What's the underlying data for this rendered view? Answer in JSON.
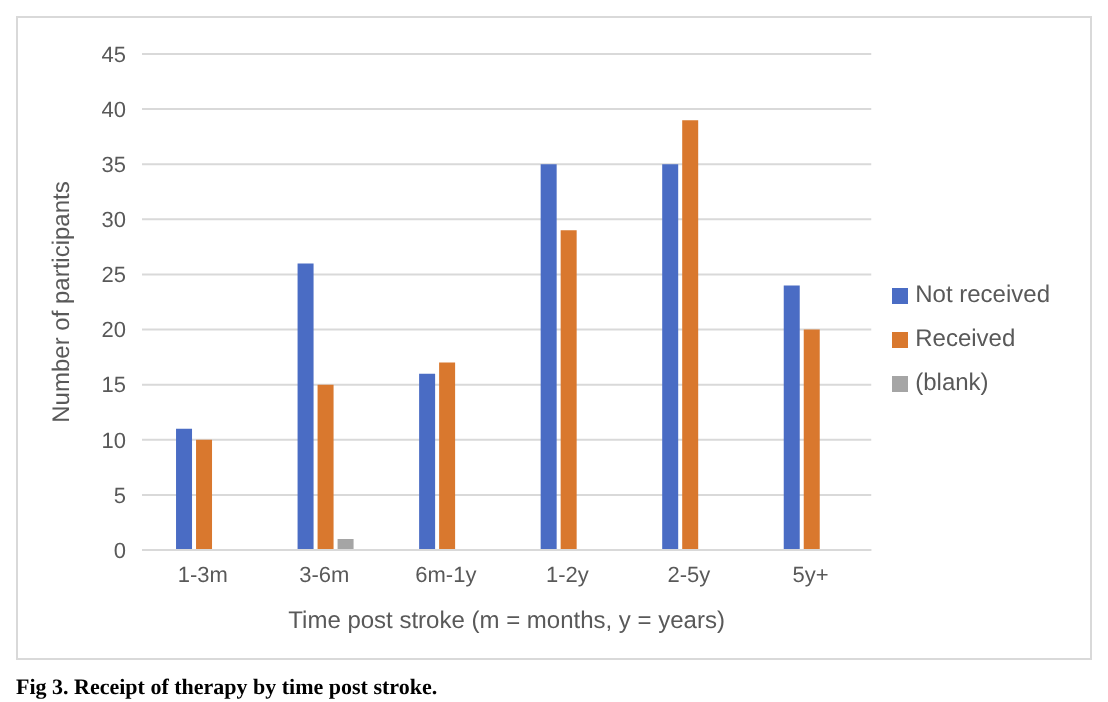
{
  "chart_data": {
    "type": "bar",
    "xlabel": "Time post stroke (m = months, y = years)",
    "ylabel": "Number of participants",
    "categories": [
      "1-3m",
      "3-6m",
      "6m-1y",
      "1-2y",
      "2-5y",
      "5y+"
    ],
    "series": [
      {
        "name": "Not received",
        "color": "#4a6cc4",
        "values": [
          11,
          26,
          16,
          35,
          35,
          24
        ]
      },
      {
        "name": "Received",
        "color": "#d9782e",
        "values": [
          10,
          15,
          17,
          29,
          39,
          20
        ]
      },
      {
        "name": "(blank)",
        "color": "#a5a5a5",
        "values": [
          null,
          1,
          null,
          null,
          null,
          null
        ]
      }
    ],
    "ylim": [
      0,
      45
    ],
    "yticks": [
      0,
      5,
      10,
      15,
      20,
      25,
      30,
      35,
      40,
      45
    ],
    "grid": "y",
    "legend": "right",
    "annotations": [
      "Fig 3.  Receipt of therapy by time post stroke."
    ]
  }
}
